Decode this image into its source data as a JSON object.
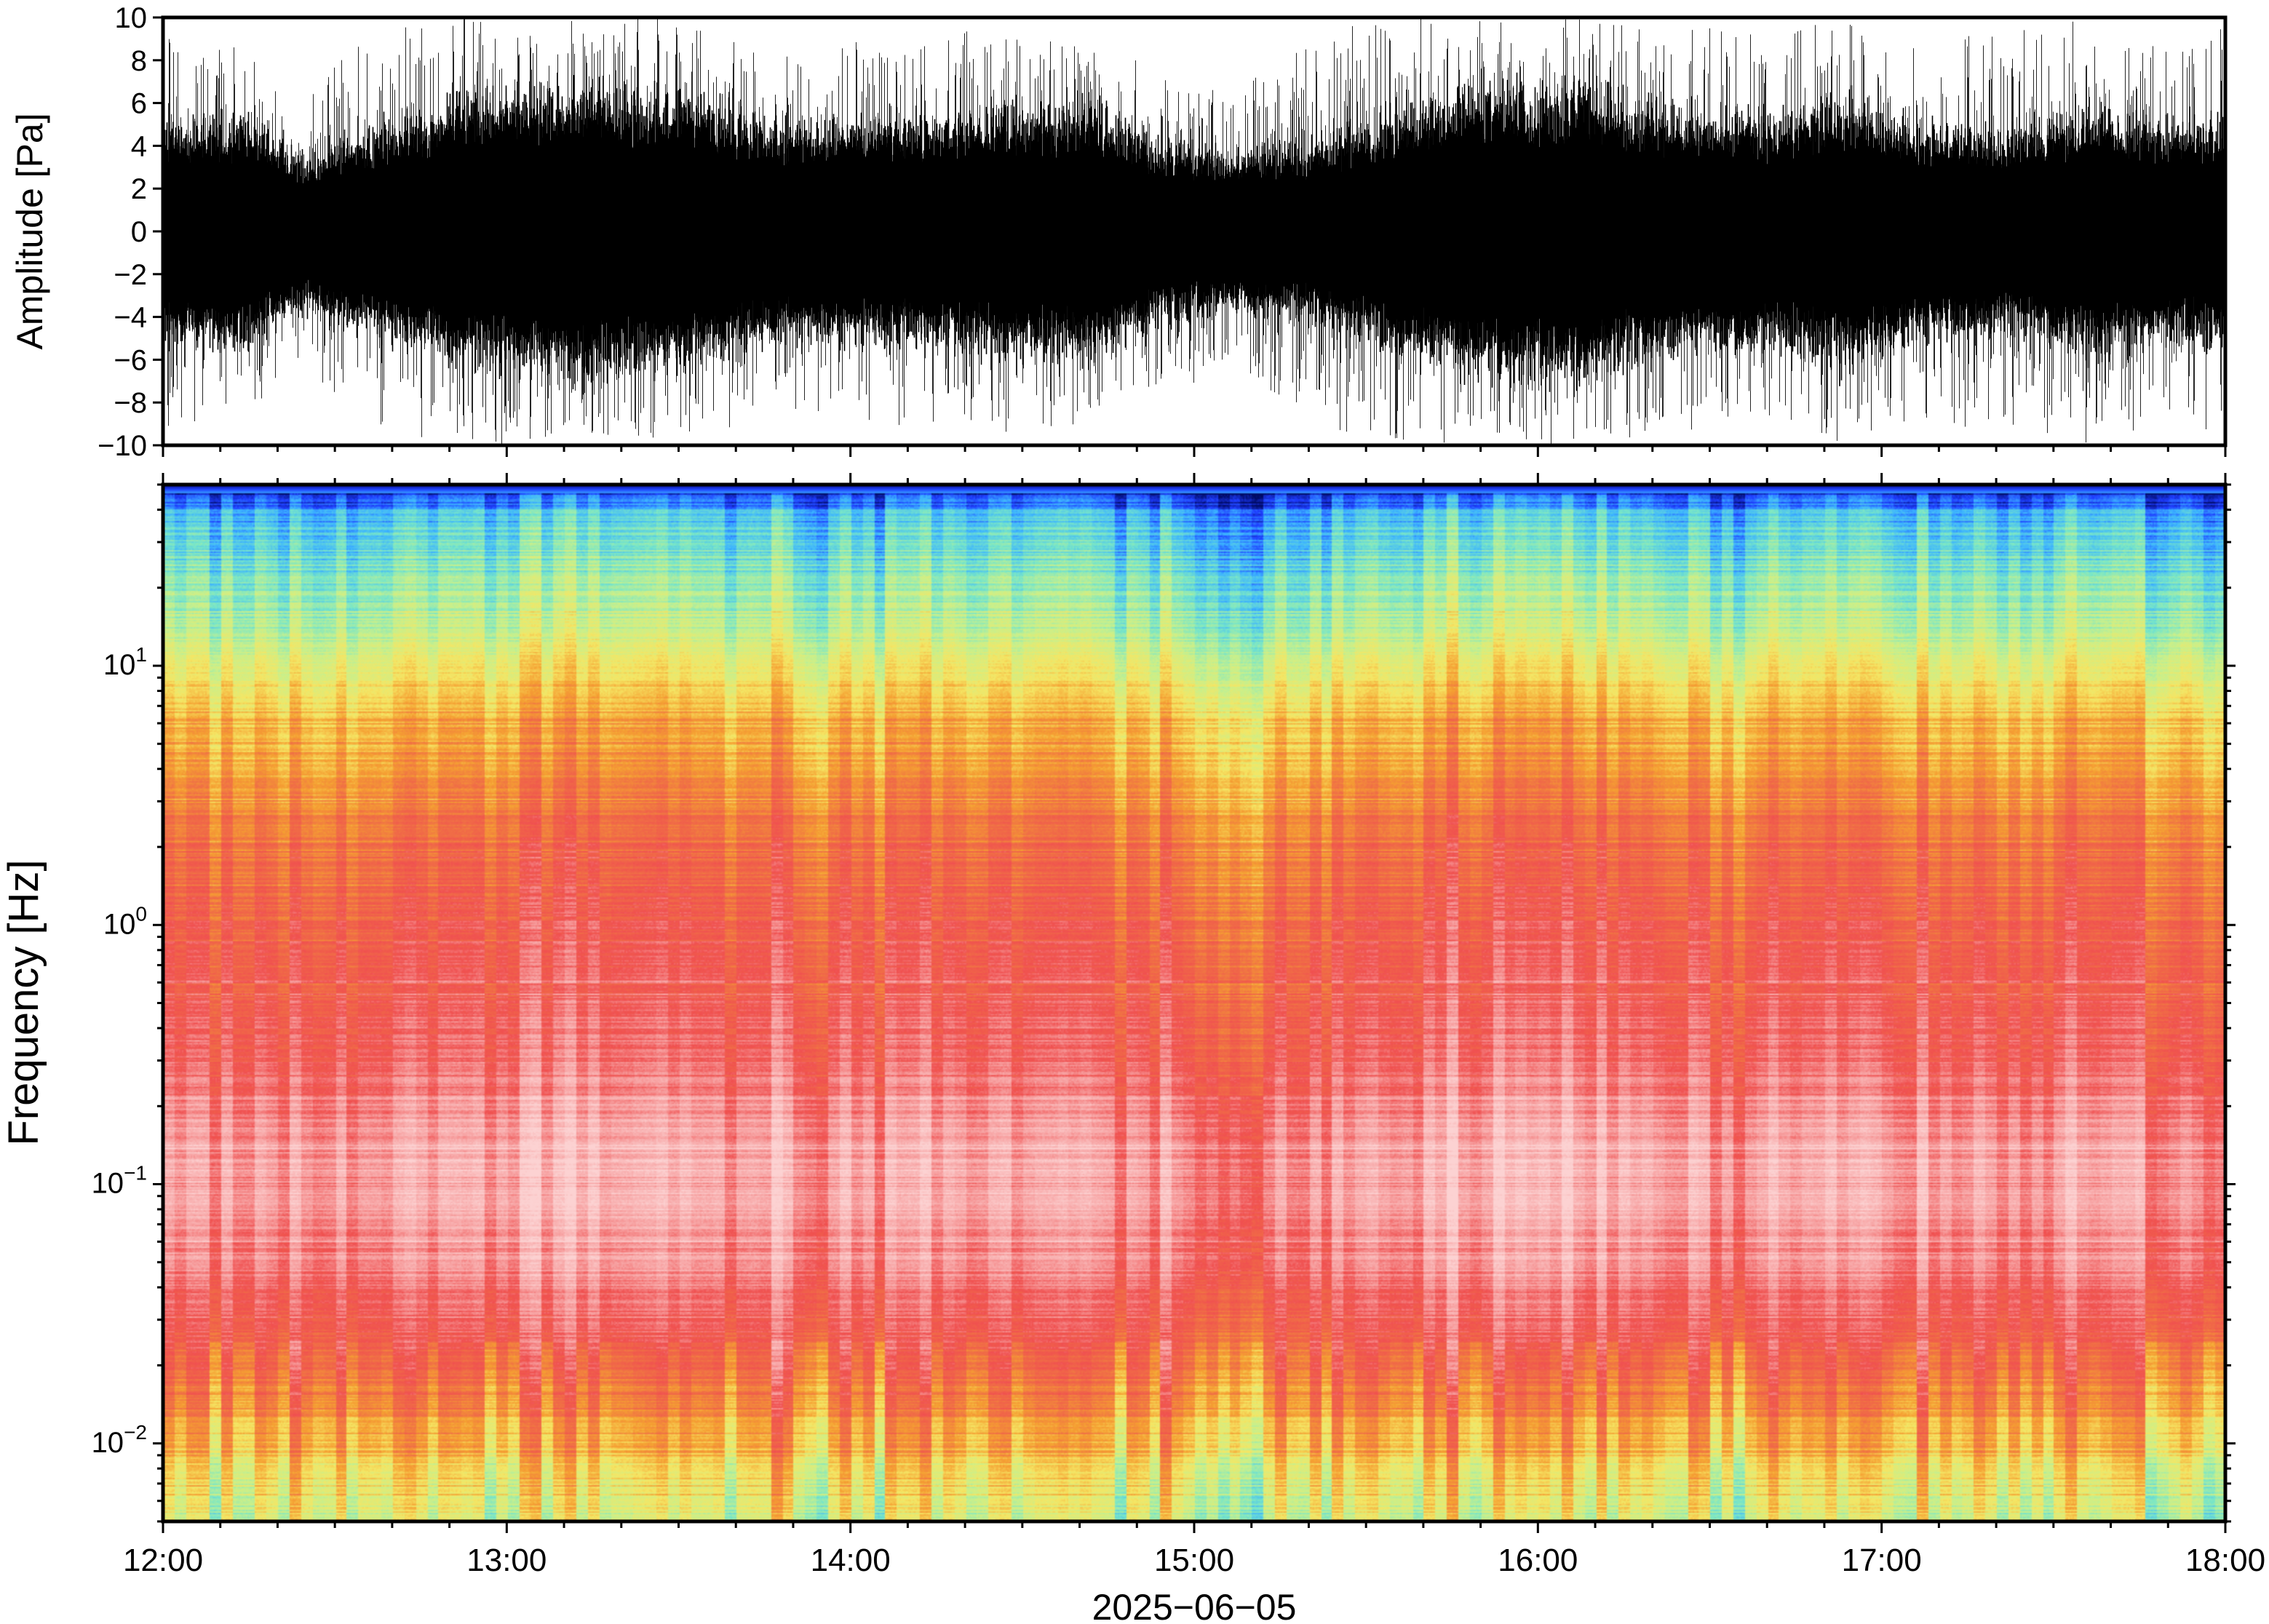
{
  "chart_data": [
    {
      "type": "line",
      "panel": "waveform",
      "ylabel": "Amplitude [Pa]",
      "ylim": [
        -10,
        10
      ],
      "yticks": [
        -10,
        -8,
        -6,
        -4,
        -2,
        0,
        2,
        4,
        6,
        8,
        10
      ],
      "ytick_labels": [
        "−10",
        "−8",
        "−6",
        "−4",
        "−2",
        "0",
        "2",
        "4",
        "6",
        "8",
        "10"
      ],
      "xlim_hours": [
        12,
        18
      ],
      "trace_color": "#000000",
      "envelope": {
        "time_hours": [
          12.0,
          12.25,
          12.4,
          12.6,
          12.9,
          13.2,
          13.5,
          13.8,
          14.1,
          14.4,
          14.7,
          14.9,
          15.1,
          15.3,
          15.5,
          15.8,
          16.1,
          16.4,
          16.7,
          16.9,
          17.1,
          17.4,
          17.6,
          17.8,
          18.0
        ],
        "typical_amplitude_pa": [
          3.8,
          4.0,
          2.8,
          3.6,
          4.8,
          5.2,
          4.8,
          3.8,
          4.0,
          4.2,
          4.5,
          3.2,
          2.8,
          3.0,
          3.8,
          5.0,
          5.2,
          4.2,
          4.0,
          4.8,
          3.8,
          3.5,
          4.5,
          3.8,
          4.0
        ],
        "peak_amplitude_pa": [
          9.5,
          8.5,
          6.0,
          9.5,
          10,
          10,
          10,
          8.5,
          9.0,
          9.5,
          9.0,
          7.5,
          7.0,
          8.5,
          10,
          10,
          10,
          9.5,
          9.5,
          10,
          9.0,
          9.5,
          10,
          9.0,
          9.5
        ]
      }
    },
    {
      "type": "heatmap",
      "panel": "spectrogram",
      "ylabel": "Frequency [Hz]",
      "yscale": "log",
      "ylim": [
        0.005,
        50
      ],
      "yticks": [
        0.01,
        0.1,
        1,
        10
      ],
      "ytick_labels": [
        {
          "base": "10",
          "exp": "−2"
        },
        {
          "base": "10",
          "exp": "−1"
        },
        {
          "base": "10",
          "exp": "0"
        },
        {
          "base": "10",
          "exp": "1"
        }
      ],
      "xlabel": "2025−06−05",
      "xlim_hours": [
        12,
        18
      ],
      "xticks": [
        "12:00",
        "13:00",
        "14:00",
        "15:00",
        "16:00",
        "17:00",
        "18:00"
      ],
      "colormap": [
        "#000a64",
        "#1e3cff",
        "#3cb4ff",
        "#78e6c8",
        "#c8f08c",
        "#f5e664",
        "#f5a032",
        "#f06e46",
        "#f05050",
        "#f7a0a0",
        "#fcd2d2"
      ],
      "level_profile": {
        "frequency_hz": [
          0.005,
          0.008,
          0.012,
          0.018,
          0.03,
          0.05,
          0.08,
          0.12,
          0.2,
          0.3,
          0.6,
          1,
          2,
          4,
          8,
          15,
          25,
          40,
          50
        ],
        "level_0_to_1": [
          0.42,
          0.5,
          0.6,
          0.7,
          0.8,
          0.86,
          0.9,
          0.92,
          0.86,
          0.82,
          0.78,
          0.76,
          0.7,
          0.62,
          0.52,
          0.38,
          0.3,
          0.22,
          0.0
        ]
      }
    }
  ]
}
